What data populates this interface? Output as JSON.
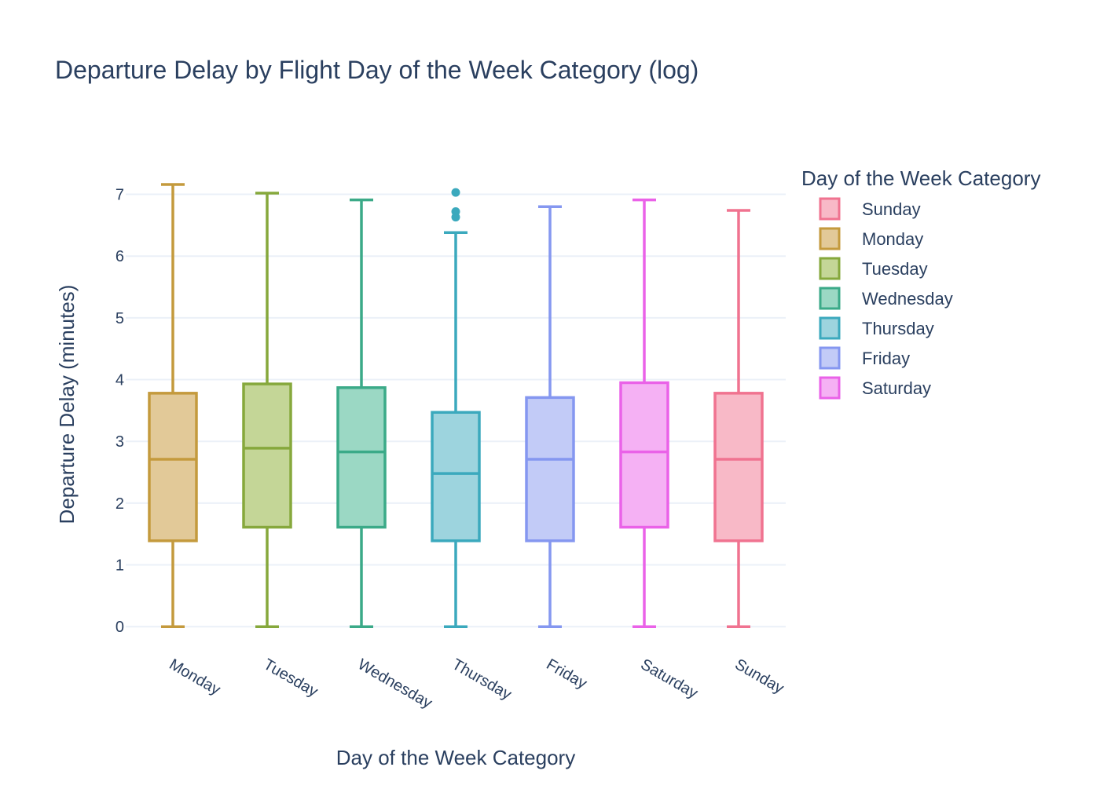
{
  "chart_data": {
    "type": "box",
    "title": "Departure Delay by Flight Day of the Week Category (log)",
    "xlabel": "Day of the Week Category",
    "ylabel": "Departure Delay (minutes)",
    "ylim": [
      -0.15,
      7.35
    ],
    "yticks": [
      0,
      1,
      2,
      3,
      4,
      5,
      6,
      7
    ],
    "grid": true,
    "legend": {
      "title": "Day of the Week Category",
      "placement": "right",
      "items": [
        "Sunday",
        "Monday",
        "Tuesday",
        "Wednesday",
        "Thursday",
        "Friday",
        "Saturday"
      ]
    },
    "categories": [
      "Monday",
      "Tuesday",
      "Wednesday",
      "Thursday",
      "Friday",
      "Saturday",
      "Sunday"
    ],
    "series": [
      {
        "name": "Monday",
        "color": "#c49a3d",
        "fill": "#e2c998",
        "min": 0,
        "q1": 1.39,
        "median": 2.71,
        "q3": 3.78,
        "max": 7.16,
        "outliers": []
      },
      {
        "name": "Tuesday",
        "color": "#86a83c",
        "fill": "#c4d697",
        "min": 0,
        "q1": 1.61,
        "median": 2.89,
        "q3": 3.93,
        "max": 7.02,
        "outliers": []
      },
      {
        "name": "Wednesday",
        "color": "#3baa88",
        "fill": "#9bd8c4",
        "min": 0,
        "q1": 1.61,
        "median": 2.83,
        "q3": 3.87,
        "max": 6.91,
        "outliers": []
      },
      {
        "name": "Thursday",
        "color": "#3ba9bd",
        "fill": "#9dd4de",
        "min": 0,
        "q1": 1.39,
        "median": 2.48,
        "q3": 3.47,
        "max": 6.38,
        "outliers": [
          7.03,
          6.72,
          6.63
        ]
      },
      {
        "name": "Friday",
        "color": "#8597f0",
        "fill": "#c2cbf7",
        "min": 0,
        "q1": 1.39,
        "median": 2.71,
        "q3": 3.71,
        "max": 6.8,
        "outliers": []
      },
      {
        "name": "Saturday",
        "color": "#ea62e8",
        "fill": "#f5b1f4",
        "min": 0,
        "q1": 1.61,
        "median": 2.83,
        "q3": 3.95,
        "max": 6.91,
        "outliers": []
      },
      {
        "name": "Sunday",
        "color": "#f07390",
        "fill": "#f8b9c7",
        "min": 0,
        "q1": 1.39,
        "median": 2.71,
        "q3": 3.78,
        "max": 6.74,
        "outliers": []
      }
    ]
  }
}
